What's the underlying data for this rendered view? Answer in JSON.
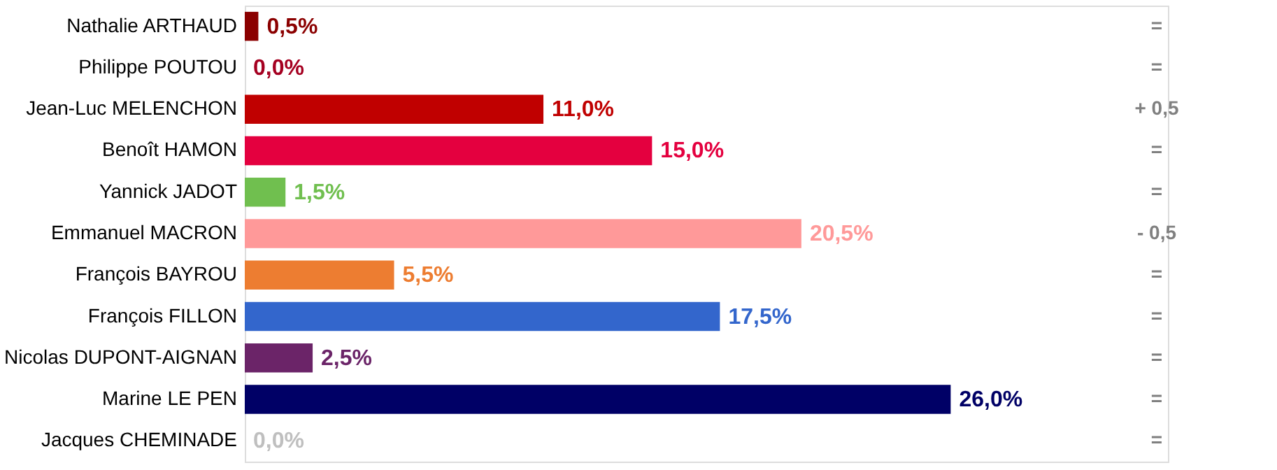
{
  "chart_data": {
    "type": "bar",
    "orientation": "horizontal",
    "categories": [
      "Nathalie ARTHAUD",
      "Philippe POUTOU",
      "Jean-Luc MELENCHON",
      "Benoît HAMON",
      "Yannick JADOT",
      "Emmanuel MACRON",
      "François BAYROU",
      "François FILLON",
      "Nicolas DUPONT-AIGNAN",
      "Marine LE PEN",
      "Jacques CHEMINADE"
    ],
    "values": [
      0.5,
      0.0,
      11.0,
      15.0,
      1.5,
      20.5,
      5.5,
      17.5,
      2.5,
      26.0,
      0.0
    ],
    "colors": [
      "#8b0000",
      "#a50021",
      "#c00000",
      "#e4003f",
      "#70bf4f",
      "#ff9999",
      "#ed7d31",
      "#3366cc",
      "#6b2468",
      "#000066",
      "#bfbfbf"
    ],
    "value_labels": [
      "0,5%",
      "0,0%",
      "11,0%",
      "15,0%",
      "1,5%",
      "20,5%",
      "5,5%",
      "17,5%",
      "2,5%",
      "26,0%",
      "0,0%"
    ],
    "xlim": [
      0,
      34
    ],
    "tick_labels": "y",
    "annotations": [
      "=",
      "=",
      "+ 0,5",
      "=",
      "=",
      "- 0,5",
      "=",
      "=",
      "=",
      "=",
      "="
    ]
  }
}
